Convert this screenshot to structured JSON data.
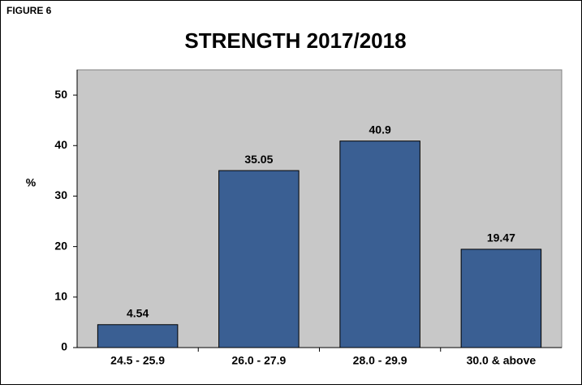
{
  "chart_data": {
    "type": "bar",
    "figure_label": "FIGURE 6",
    "title": "STRENGTH 2017/2018",
    "y_label": "%",
    "categories": [
      "24.5 - 25.9",
      "26.0 - 27.9",
      "28.0 - 29.9",
      "30.0 & above"
    ],
    "values": [
      4.54,
      35.05,
      40.9,
      19.47
    ],
    "color": "#3a5f93",
    "ylim": [
      0,
      55
    ],
    "yticks": [
      0,
      10,
      20,
      30,
      40,
      50
    ],
    "grid": false,
    "plot_background": "#c8c8c8"
  }
}
